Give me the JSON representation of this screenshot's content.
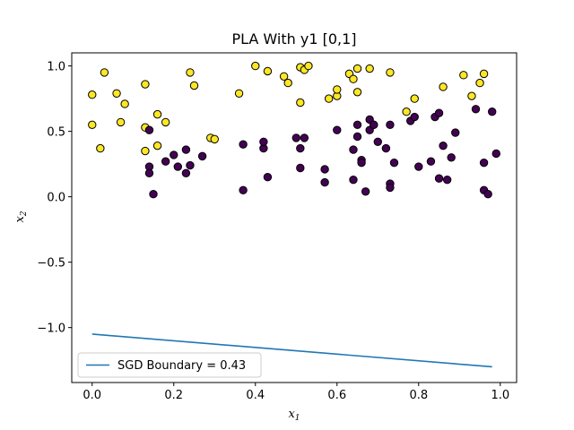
{
  "chart_data": {
    "type": "scatter",
    "title": "PLA With y1 [0,1]",
    "xlabel_main": "x",
    "xlabel_sub": "1",
    "ylabel_main": "x",
    "ylabel_sub": "2",
    "xlim": [
      -0.05,
      1.04
    ],
    "ylim": [
      -1.42,
      1.1
    ],
    "x_ticks": [
      0.0,
      0.2,
      0.4,
      0.6,
      0.8,
      1.0
    ],
    "x_tick_labels": [
      "0.0",
      "0.2",
      "0.4",
      "0.6",
      "0.8",
      "1.0"
    ],
    "y_ticks": [
      -1.0,
      -0.5,
      0.0,
      0.5,
      1.0
    ],
    "y_tick_labels": [
      "−1.0",
      "−0.5",
      "0.0",
      "0.5",
      "1.0"
    ],
    "grid": false,
    "legend_position": "lower-left",
    "class_colors": {
      "0": "#440154",
      "1": "#fde725"
    },
    "edge_color": "#000000",
    "line_color": "#1f77b4",
    "series": [
      {
        "class": 1,
        "points": [
          [
            0.0,
            0.78
          ],
          [
            0.0,
            0.55
          ],
          [
            0.02,
            0.37
          ],
          [
            0.03,
            0.95
          ],
          [
            0.06,
            0.79
          ],
          [
            0.07,
            0.57
          ],
          [
            0.08,
            0.71
          ],
          [
            0.13,
            0.86
          ],
          [
            0.13,
            0.53
          ],
          [
            0.13,
            0.35
          ],
          [
            0.16,
            0.63
          ],
          [
            0.16,
            0.39
          ],
          [
            0.18,
            0.57
          ],
          [
            0.24,
            0.95
          ],
          [
            0.25,
            0.85
          ],
          [
            0.29,
            0.45
          ],
          [
            0.3,
            0.44
          ],
          [
            0.36,
            0.79
          ],
          [
            0.4,
            1.0
          ],
          [
            0.43,
            0.96
          ],
          [
            0.47,
            0.92
          ],
          [
            0.48,
            0.87
          ],
          [
            0.51,
            0.72
          ],
          [
            0.51,
            0.99
          ],
          [
            0.52,
            0.97
          ],
          [
            0.53,
            1.0
          ],
          [
            0.58,
            0.75
          ],
          [
            0.6,
            0.77
          ],
          [
            0.6,
            0.82
          ],
          [
            0.63,
            0.94
          ],
          [
            0.64,
            0.9
          ],
          [
            0.65,
            0.98
          ],
          [
            0.65,
            0.8
          ],
          [
            0.68,
            0.98
          ],
          [
            0.73,
            0.95
          ],
          [
            0.77,
            0.65
          ],
          [
            0.79,
            0.75
          ],
          [
            0.86,
            0.84
          ],
          [
            0.91,
            0.93
          ],
          [
            0.93,
            0.77
          ],
          [
            0.95,
            0.87
          ],
          [
            0.96,
            0.94
          ]
        ]
      },
      {
        "class": 0,
        "points": [
          [
            0.14,
            0.23
          ],
          [
            0.14,
            0.18
          ],
          [
            0.15,
            0.02
          ],
          [
            0.14,
            0.51
          ],
          [
            0.18,
            0.27
          ],
          [
            0.2,
            0.32
          ],
          [
            0.21,
            0.23
          ],
          [
            0.23,
            0.18
          ],
          [
            0.23,
            0.36
          ],
          [
            0.24,
            0.24
          ],
          [
            0.27,
            0.31
          ],
          [
            0.37,
            0.4
          ],
          [
            0.37,
            0.05
          ],
          [
            0.42,
            0.37
          ],
          [
            0.42,
            0.42
          ],
          [
            0.43,
            0.15
          ],
          [
            0.5,
            0.45
          ],
          [
            0.51,
            0.37
          ],
          [
            0.51,
            0.22
          ],
          [
            0.52,
            0.45
          ],
          [
            0.57,
            0.21
          ],
          [
            0.57,
            0.11
          ],
          [
            0.6,
            0.51
          ],
          [
            0.64,
            0.36
          ],
          [
            0.64,
            0.13
          ],
          [
            0.65,
            0.55
          ],
          [
            0.65,
            0.46
          ],
          [
            0.66,
            0.28
          ],
          [
            0.66,
            0.26
          ],
          [
            0.67,
            0.04
          ],
          [
            0.68,
            0.59
          ],
          [
            0.68,
            0.51
          ],
          [
            0.69,
            0.55
          ],
          [
            0.69,
            0.55
          ],
          [
            0.7,
            0.42
          ],
          [
            0.72,
            0.37
          ],
          [
            0.73,
            0.55
          ],
          [
            0.73,
            0.1
          ],
          [
            0.73,
            0.07
          ],
          [
            0.74,
            0.26
          ],
          [
            0.78,
            0.58
          ],
          [
            0.79,
            0.61
          ],
          [
            0.8,
            0.23
          ],
          [
            0.83,
            0.27
          ],
          [
            0.84,
            0.61
          ],
          [
            0.85,
            0.64
          ],
          [
            0.85,
            0.14
          ],
          [
            0.86,
            0.39
          ],
          [
            0.87,
            0.13
          ],
          [
            0.88,
            0.3
          ],
          [
            0.89,
            0.49
          ],
          [
            0.94,
            0.67
          ],
          [
            0.96,
            0.05
          ],
          [
            0.96,
            0.26
          ],
          [
            0.97,
            0.02
          ],
          [
            0.98,
            0.65
          ],
          [
            0.99,
            0.33
          ]
        ]
      }
    ],
    "lines": [
      {
        "name": "SGD Boundary = 0.43",
        "x": [
          0.0,
          0.98
        ],
        "y": [
          -1.05,
          -1.3
        ]
      }
    ]
  }
}
